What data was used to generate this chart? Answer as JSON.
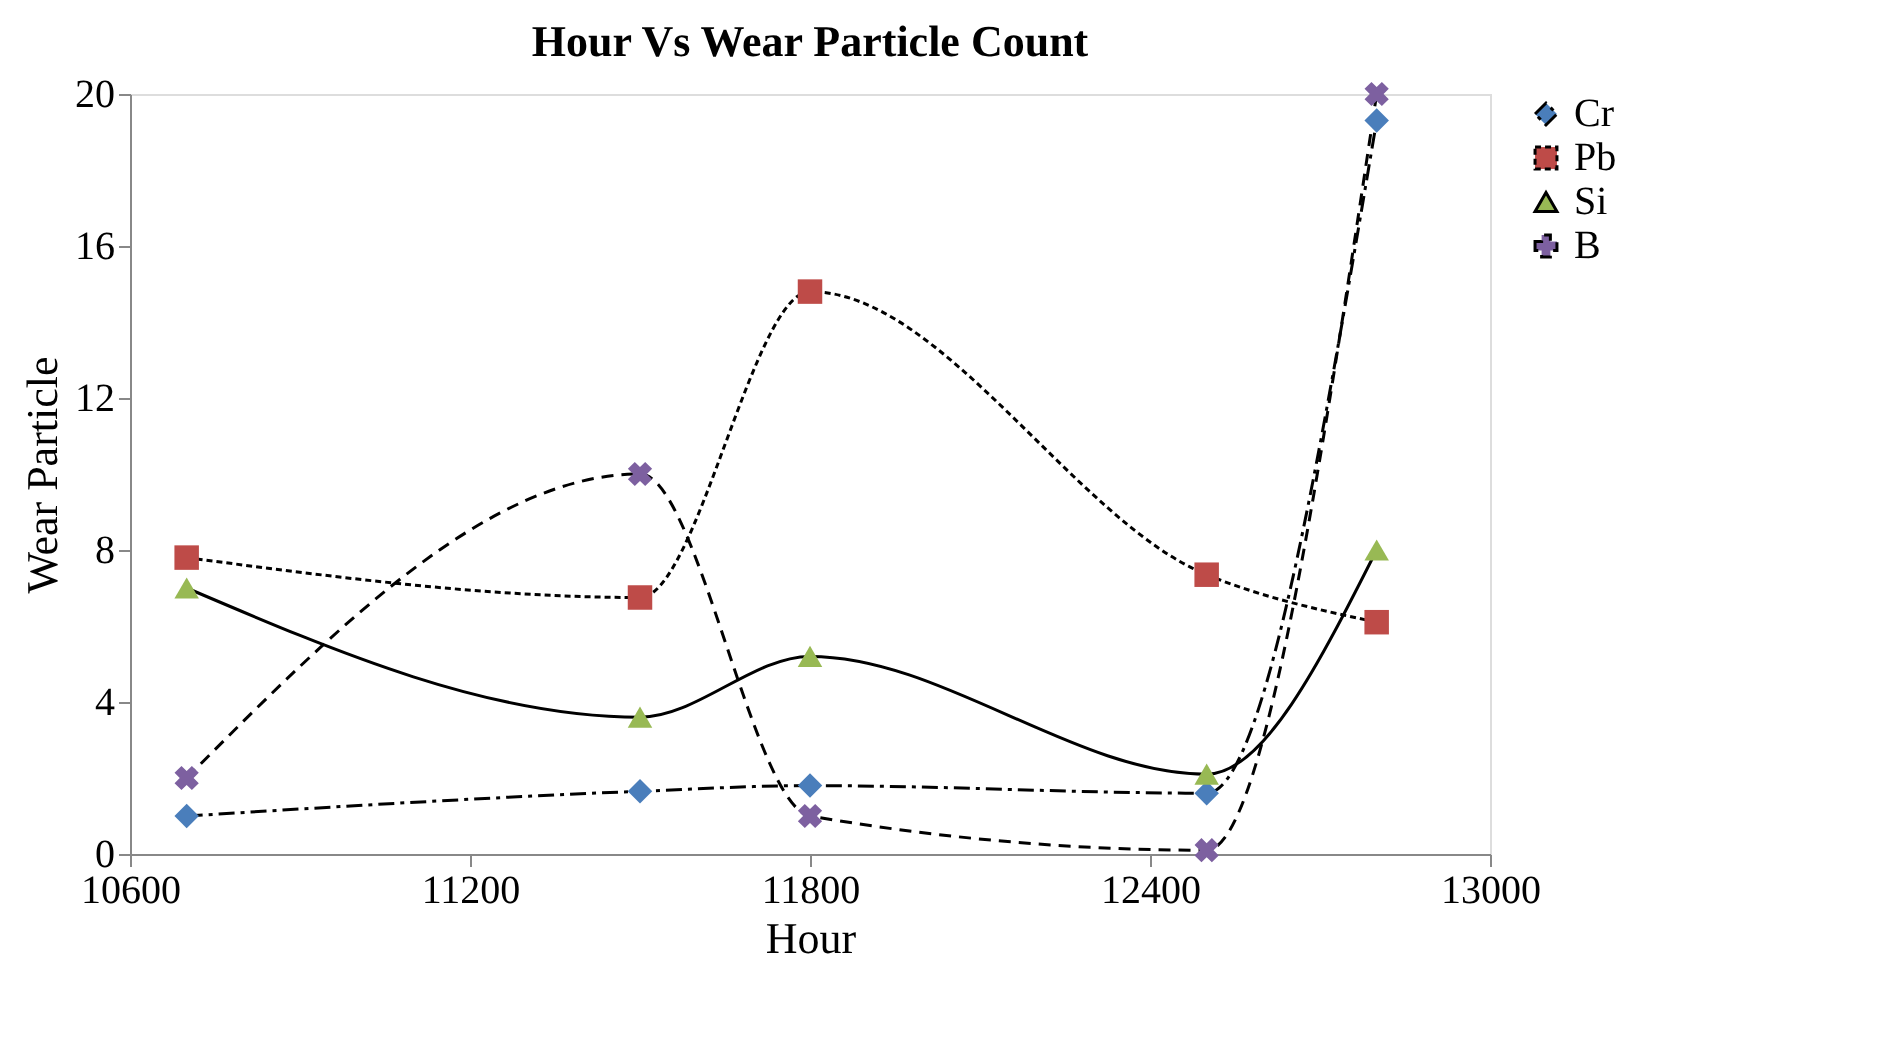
{
  "chart_data": {
    "type": "line",
    "title": "Hour Vs Wear Particle  Count",
    "xlabel": "Hour",
    "ylabel": "Wear Particle",
    "x": [
      10700,
      11500,
      11800,
      12500,
      12800
    ],
    "xlim": [
      10600,
      13000
    ],
    "xticks": [
      10600,
      11200,
      11800,
      12400,
      13000
    ],
    "ylim": [
      0,
      20
    ],
    "yticks": [
      0,
      4,
      8,
      12,
      16,
      20
    ],
    "grid": false,
    "legend": "right",
    "series": [
      {
        "name": "Cr",
        "color": "#4a7ebb",
        "marker": "diamond",
        "line_style": "dashdot",
        "values": [
          1.0,
          1.65,
          1.8,
          1.6,
          19.3
        ]
      },
      {
        "name": "Pb",
        "color": "#be4b48",
        "marker": "square",
        "line_style": "dotted",
        "values": [
          7.8,
          6.75,
          14.8,
          7.35,
          6.1
        ]
      },
      {
        "name": "Si",
        "color": "#98b954",
        "marker": "triangle",
        "line_style": "solid",
        "values": [
          7.0,
          3.6,
          5.2,
          2.1,
          8.0
        ]
      },
      {
        "name": "B",
        "color": "#7d60a0",
        "marker": "cross",
        "line_style": "dashed",
        "values": [
          2.0,
          10.0,
          1.0,
          0.1,
          20.0
        ]
      }
    ]
  }
}
